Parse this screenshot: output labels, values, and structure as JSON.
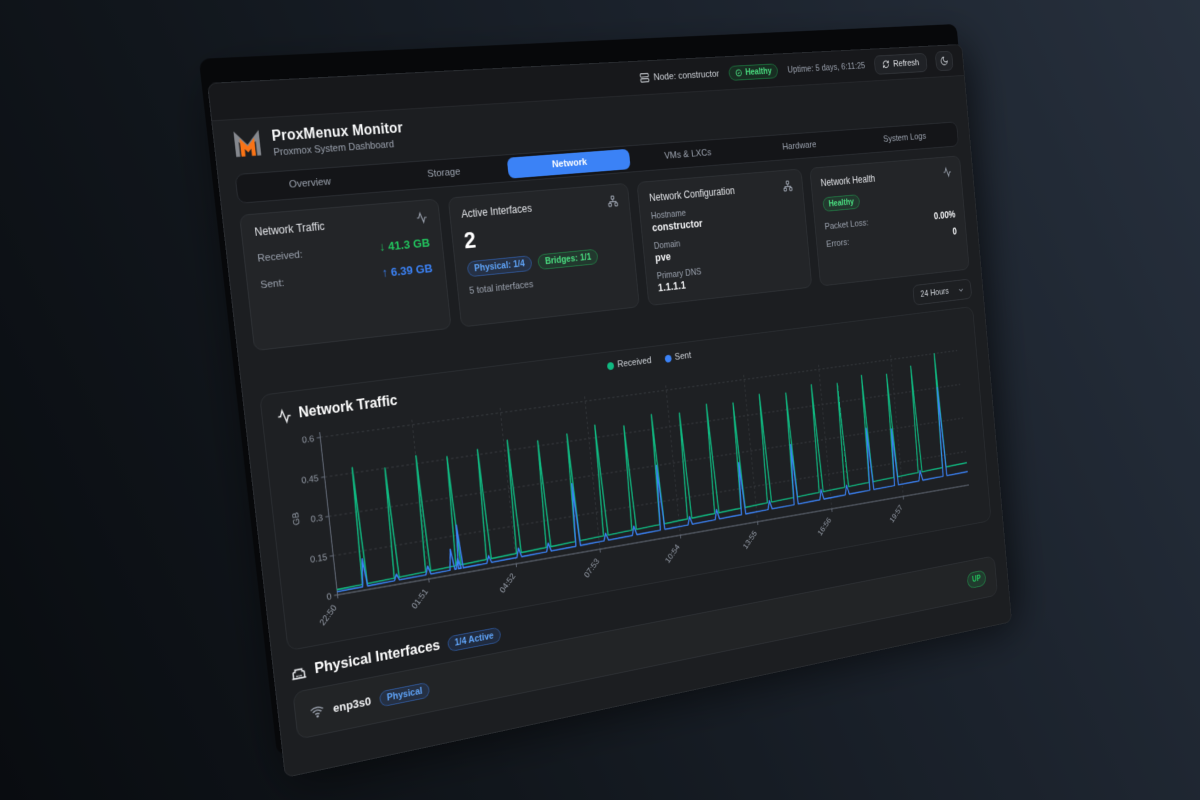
{
  "topbar": {
    "node_label": "Node: constructor",
    "health_label": "Healthy",
    "uptime": "Uptime: 5 days, 6:11:25",
    "refresh_label": "Refresh"
  },
  "header": {
    "title": "ProxMenux Monitor",
    "subtitle": "Proxmox System Dashboard"
  },
  "tabs": [
    {
      "label": "Overview",
      "active": false
    },
    {
      "label": "Storage",
      "active": false
    },
    {
      "label": "Network",
      "active": true
    },
    {
      "label": "VMs & LXCs",
      "active": false
    },
    {
      "label": "Hardware",
      "active": false
    },
    {
      "label": "System Logs",
      "active": false
    }
  ],
  "cards": {
    "traffic": {
      "title": "Network Traffic",
      "received_label": "Received:",
      "received_value": "↓ 41.3 GB",
      "sent_label": "Sent:",
      "sent_value": "↑ 6.39 GB"
    },
    "interfaces": {
      "title": "Active Interfaces",
      "count": "2",
      "physical_badge": "Physical: 1/4",
      "bridges_badge": "Bridges: 1/1",
      "total": "5 total interfaces"
    },
    "config": {
      "title": "Network Configuration",
      "hostname_label": "Hostname",
      "hostname_value": "constructor",
      "domain_label": "Domain",
      "domain_value": "pve",
      "dns_label": "Primary DNS",
      "dns_value": "1.1.1.1"
    },
    "health": {
      "title": "Network Health",
      "status": "Healthy",
      "packet_loss_label": "Packet Loss:",
      "packet_loss_value": "0.00%",
      "errors_label": "Errors:",
      "errors_value": "0"
    }
  },
  "time_range": {
    "selected": "24 Hours"
  },
  "chart_data": {
    "type": "line",
    "title": "Network Traffic",
    "ylabel": "GB",
    "y_max": 0.62,
    "y_ticks": [
      0,
      0.15,
      0.3,
      0.45,
      0.6
    ],
    "x_ticks": [
      {
        "f": 0.0,
        "label": "22:50"
      },
      {
        "f": 0.1257,
        "label": "01:51"
      },
      {
        "f": 0.2514,
        "label": "04:52"
      },
      {
        "f": 0.3772,
        "label": "07:53"
      },
      {
        "f": 0.5029,
        "label": "10:54"
      },
      {
        "f": 0.6286,
        "label": "13:55"
      },
      {
        "f": 0.7543,
        "label": "16:56"
      },
      {
        "f": 0.8801,
        "label": "19:57"
      }
    ],
    "legend": [
      {
        "label": "Received",
        "color": "#10b981"
      },
      {
        "label": "Sent",
        "color": "#3b82f6"
      }
    ],
    "series": [
      {
        "name": "Received",
        "color": "#10b981",
        "baseline": [
          0.02,
          0.1
        ],
        "spikes": [
          [
            0.038,
            0.47
          ],
          [
            0.082,
            0.45
          ],
          [
            0.126,
            0.48
          ],
          [
            0.169,
            0.46
          ],
          [
            0.213,
            0.47
          ],
          [
            0.257,
            0.49
          ],
          [
            0.301,
            0.47
          ],
          [
            0.345,
            0.48
          ],
          [
            0.388,
            0.5
          ],
          [
            0.432,
            0.48
          ],
          [
            0.476,
            0.51
          ],
          [
            0.52,
            0.5
          ],
          [
            0.564,
            0.52
          ],
          [
            0.607,
            0.51
          ],
          [
            0.651,
            0.53
          ],
          [
            0.695,
            0.52
          ],
          [
            0.739,
            0.54
          ],
          [
            0.783,
            0.53
          ],
          [
            0.826,
            0.55
          ],
          [
            0.87,
            0.54
          ],
          [
            0.914,
            0.56
          ],
          [
            0.958,
            0.6
          ]
        ]
      },
      {
        "name": "Sent",
        "color": "#3b82f6",
        "baseline": [
          0.012,
          0.06
        ],
        "spikes": [
          [
            0.038,
            0.12
          ],
          [
            0.082,
            0.04
          ],
          [
            0.126,
            0.05
          ],
          [
            0.16,
            0.1
          ],
          [
            0.169,
            0.06
          ],
          [
            0.172,
            0.19
          ],
          [
            0.213,
            0.05
          ],
          [
            0.257,
            0.06
          ],
          [
            0.301,
            0.06
          ],
          [
            0.345,
            0.28
          ],
          [
            0.388,
            0.06
          ],
          [
            0.432,
            0.07
          ],
          [
            0.476,
            0.3
          ],
          [
            0.52,
            0.07
          ],
          [
            0.564,
            0.08
          ],
          [
            0.607,
            0.26
          ],
          [
            0.651,
            0.08
          ],
          [
            0.695,
            0.3
          ],
          [
            0.739,
            0.09
          ],
          [
            0.783,
            0.09
          ],
          [
            0.826,
            0.32
          ],
          [
            0.87,
            0.3
          ],
          [
            0.914,
            0.1
          ],
          [
            0.958,
            0.45
          ]
        ]
      }
    ]
  },
  "physical": {
    "title": "Physical Interfaces",
    "active_badge": "1/4 Active",
    "interfaces": [
      {
        "name": "enp3s0",
        "type_badge": "Physical",
        "status": "UP"
      }
    ]
  },
  "colors": {
    "accent": "#3b82f6",
    "green": "#22c55e"
  }
}
